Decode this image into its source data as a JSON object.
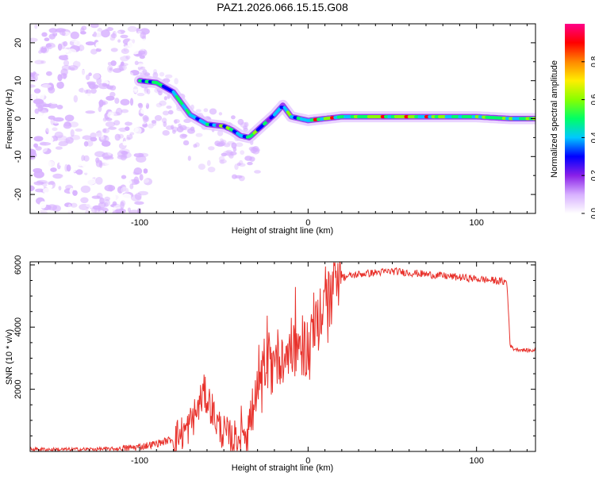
{
  "figure_title": "PAZ1.2026.066.15.15.G08",
  "colors": {
    "frame": "#000000",
    "snr_line": "#e8322c",
    "background": "#ffffff"
  },
  "chart_data": [
    {
      "type": "heatmap",
      "title": "PAZ1.2026.066.15.15.G08",
      "xlabel": "Height of straight line (km)",
      "ylabel": "Frequency (Hz)",
      "xlim": [
        -165,
        135
      ],
      "ylim": [
        -25,
        25
      ],
      "xticks": [
        -100,
        0,
        100
      ],
      "yticks": [
        -20,
        -10,
        0,
        10,
        20
      ],
      "ridge": {
        "x": [
          -100,
          -90,
          -80,
          -70,
          -60,
          -50,
          -45,
          -40,
          -35,
          -30,
          -25,
          -20,
          -15,
          -10,
          -5,
          0,
          10,
          20,
          40,
          60,
          80,
          100,
          120,
          135
        ],
        "y": [
          10,
          9.5,
          7,
          1,
          -1.5,
          -2,
          -3,
          -4.5,
          -5,
          -3,
          -1,
          1,
          3.5,
          0.5,
          0,
          -0.5,
          0,
          0.5,
          0.5,
          0.5,
          0.5,
          0.5,
          0,
          0
        ]
      },
      "colorbar": {
        "label": "Normalized spectral amplitude",
        "range": [
          0,
          1
        ],
        "ticks": [
          0.0,
          0.2,
          0.4,
          0.6,
          0.8
        ],
        "tick_labels": [
          "0.0",
          "0.2",
          "0.4",
          "0.6",
          "0.8"
        ],
        "colormap": [
          "#ffffff",
          "#d7b0ff",
          "#8a20e8",
          "#0000ff",
          "#00c8ff",
          "#00ff66",
          "#88ff00",
          "#ffee00",
          "#ff8800",
          "#ff0000",
          "#ff0088"
        ]
      }
    },
    {
      "type": "line",
      "xlabel": "Height of straight line (km)",
      "ylabel": "SNR (10 * v/v)",
      "xlim": [
        -165,
        135
      ],
      "ylim": [
        0,
        6100
      ],
      "xticks": [
        -100,
        0,
        100
      ],
      "yticks": [
        2000,
        4000,
        6000
      ],
      "series": [
        {
          "name": "SNR",
          "x": [
            -165,
            -150,
            -130,
            -110,
            -100,
            -90,
            -80,
            -72,
            -66,
            -62,
            -58,
            -54,
            -50,
            -45,
            -40,
            -35,
            -30,
            -25,
            -20,
            -15,
            -10,
            -5,
            0,
            5,
            10,
            15,
            20,
            25,
            30,
            40,
            50,
            60,
            70,
            80,
            90,
            100,
            110,
            118,
            120,
            122,
            130,
            135
          ],
          "y": [
            80,
            60,
            70,
            90,
            150,
            250,
            400,
            700,
            1300,
            1900,
            1500,
            900,
            600,
            400,
            500,
            900,
            1700,
            2400,
            2900,
            3200,
            3300,
            3400,
            3350,
            4000,
            4600,
            5200,
            5600,
            5650,
            5700,
            5750,
            5800,
            5750,
            5700,
            5650,
            5600,
            5550,
            5500,
            5450,
            3400,
            3300,
            3250,
            3250
          ]
        }
      ],
      "noise": {
        "x_ranges": [
          [
            -165,
            -110
          ],
          [
            -110,
            -80
          ],
          [
            -80,
            -40
          ],
          [
            -40,
            20
          ],
          [
            20,
            118
          ],
          [
            118,
            135
          ]
        ],
        "amplitudes": [
          60,
          120,
          600,
          1000,
          120,
          60
        ]
      }
    }
  ]
}
